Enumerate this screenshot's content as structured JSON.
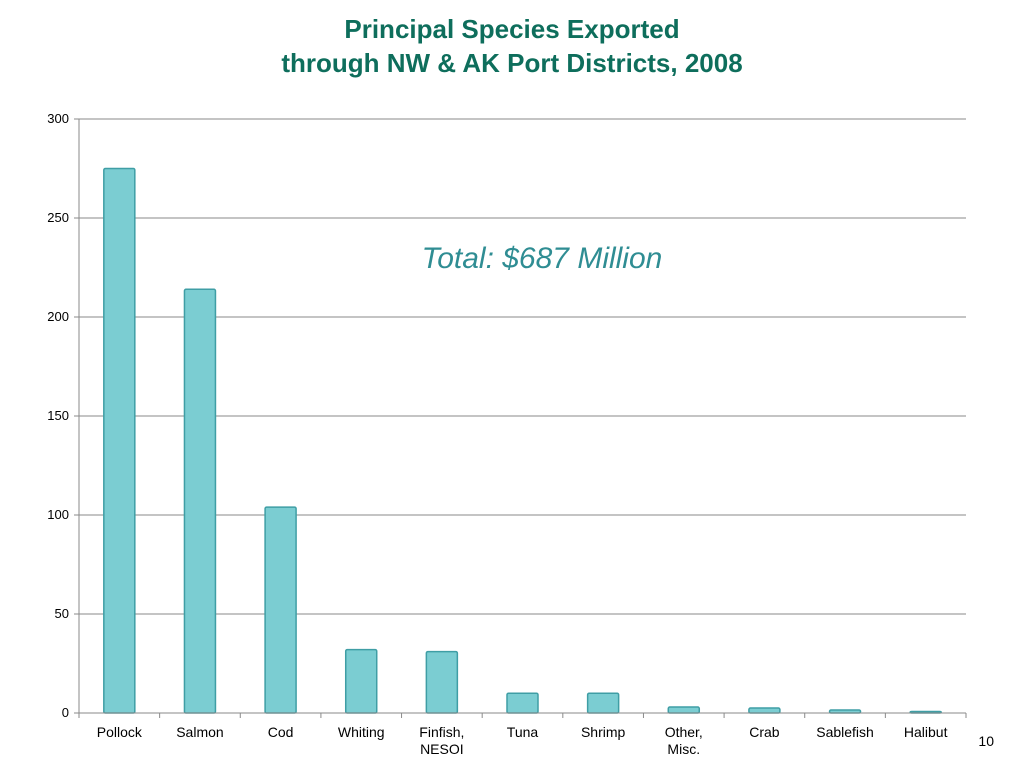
{
  "slide": {
    "title_line1": "Principal Species Exported",
    "title_line2": "through NW & AK Port Districts, 2008",
    "page_number": "10",
    "accent_color": "#0e6e5c"
  },
  "chart_data": {
    "type": "bar",
    "categories": [
      [
        "Pollock"
      ],
      [
        "Salmon"
      ],
      [
        "Cod"
      ],
      [
        "Whiting"
      ],
      [
        "Finfish,",
        "NESOI"
      ],
      [
        "Tuna"
      ],
      [
        "Shrimp"
      ],
      [
        "Other,",
        "Misc."
      ],
      [
        "Crab"
      ],
      [
        "Sablefish"
      ],
      [
        "Halibut"
      ]
    ],
    "values": [
      275,
      214,
      104,
      32,
      31,
      10,
      10,
      3,
      2.5,
      1.5,
      0.5
    ],
    "ylim": [
      0,
      300
    ],
    "yticks": [
      0,
      50,
      100,
      150,
      200,
      250,
      300
    ],
    "grid": true,
    "annotation": "Total: $687 Million",
    "bar_color": "#7bcdd2",
    "bar_edge_color": "#3f9ea5",
    "annotation_color": "#2f8d93"
  }
}
